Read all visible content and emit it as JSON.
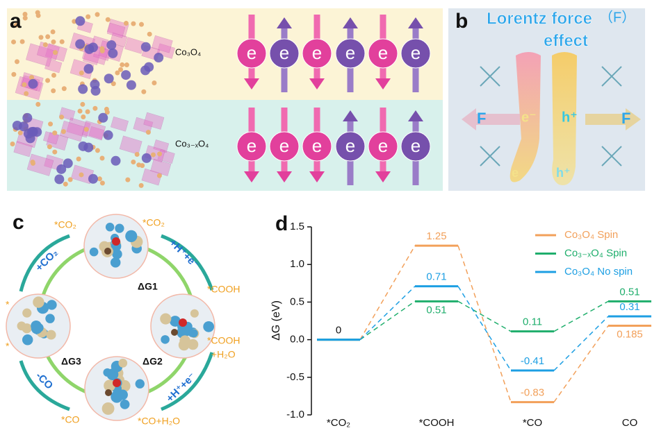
{
  "panel_a": {
    "label": "a",
    "top_material": "Co₃O₄",
    "bottom_material": "Co₃₋ₓO₄",
    "electron": "e"
  },
  "panel_b": {
    "label": "b",
    "title_line1": "Lorentz force",
    "title_symbol": "（F）",
    "title_line2": "effect",
    "force": "F",
    "electron": "e⁻",
    "hole": "h⁺",
    "electron_tail": "e",
    "hole_tail": "h⁺"
  },
  "panel_c": {
    "label": "c",
    "top_left": "*CO₂",
    "top_left_step": "+CO₂",
    "top_right": "*CO₂",
    "top_right_step": "+H⁺+e⁻",
    "right_top": "*COOH",
    "dg1": "ΔG1",
    "left_top": "*",
    "right_bottom": "*COOH",
    "right_bottom_extra": "+H₂O",
    "dg2": "ΔG2",
    "dg3": "ΔG3",
    "left_bottom": "*",
    "left_step": "-CO",
    "right_step": "+H⁺+e⁻",
    "bottom_left": "*CO",
    "bottom_right": "*CO+H₂O"
  },
  "chart_data": {
    "type": "energy",
    "panel_label": "d",
    "ylabel": "ΔG (eV)",
    "categories": [
      "*CO₂",
      "*COOH",
      "*CO",
      "CO"
    ],
    "series": [
      {
        "name": "Co₃O₄ Spin",
        "color": "#f2a05a",
        "values": [
          0,
          1.25,
          -0.83,
          0.185
        ],
        "value_labels": [
          null,
          "1.25",
          "-0.83",
          "0.185"
        ]
      },
      {
        "name": "Co₃₋ₓO₄  Spin",
        "color": "#1fae6c",
        "values": [
          0,
          0.51,
          0.11,
          0.51
        ],
        "value_labels": [
          null,
          "0.51",
          "0.11",
          "0.51"
        ]
      },
      {
        "name": "Co₃O₄ No spin",
        "color": "#1d9fe3",
        "values": [
          0,
          0.71,
          -0.41,
          0.31
        ],
        "value_labels": [
          "0",
          "0.71",
          "-0.41",
          "0.31"
        ]
      }
    ],
    "ylim": [
      -1.0,
      1.5
    ],
    "yticks": [
      {
        "value": -1,
        "label": "-1.0"
      },
      -0.5,
      {
        "value": 0,
        "label": "0.0"
      },
      0.5,
      {
        "value": 1,
        "label": "1.0"
      },
      1.5
    ]
  }
}
